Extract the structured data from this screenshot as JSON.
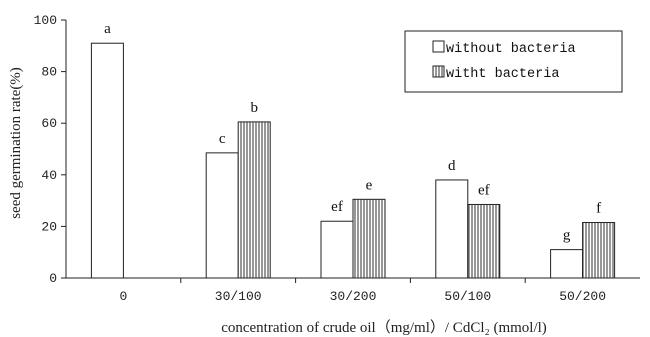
{
  "chart_data": {
    "type": "bar",
    "ylabel": "seed germination rate(%)",
    "xlabel": "concentration of crude oil（mg/ml）/ CdCl₂ (mmol/l)",
    "ylim": [
      0,
      100
    ],
    "yticks": [
      0,
      20,
      40,
      60,
      80,
      100
    ],
    "categories": [
      "0",
      "30/100",
      "30/200",
      "50/100",
      "50/200"
    ],
    "series": [
      {
        "name": "without bacteria",
        "values": [
          91,
          48.5,
          22,
          38,
          11
        ],
        "labels": [
          "a",
          "c",
          "ef",
          "d",
          "g"
        ]
      },
      {
        "name": "witht bacteria",
        "values": [
          null,
          60.5,
          30.5,
          28.5,
          21.5
        ],
        "labels": [
          "",
          "b",
          "e",
          "ef",
          "f"
        ]
      }
    ],
    "legend_position": "top-right",
    "grid": false,
    "colors": {
      "axis": "#222222",
      "bar_fill": "#ffffff",
      "hatch": "#444444"
    }
  }
}
